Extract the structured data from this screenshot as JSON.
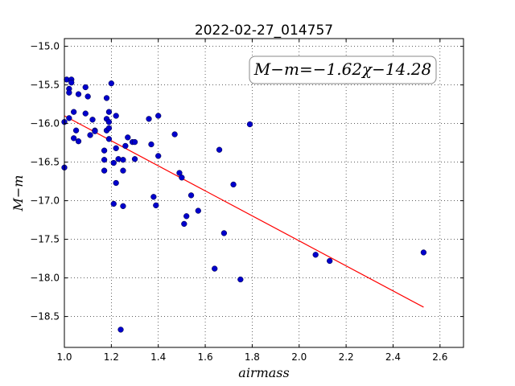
{
  "chart_data": {
    "type": "scatter",
    "title": "2022-02-27_014757",
    "xlabel": "airmass",
    "ylabel": "M−m",
    "xlim": [
      1.0,
      2.7
    ],
    "ylim": [
      -18.9,
      -14.9
    ],
    "y_inverted": true,
    "xticks": [
      "1.0",
      "1.2",
      "1.4",
      "1.6",
      "1.8",
      "2.0",
      "2.2",
      "2.4",
      "2.6"
    ],
    "yticks": [
      "−15.0",
      "−15.5",
      "−16.0",
      "−16.5",
      "−17.0",
      "−17.5",
      "−18.0",
      "−18.5"
    ],
    "grid": true,
    "annotation": "M−m=−1.62χ−14.28",
    "fit": {
      "slope": -1.62,
      "intercept": -14.28,
      "x_range": [
        1.0,
        2.53
      ],
      "color": "#ff0000"
    },
    "point_color": "#0000cc",
    "points": [
      [
        1.0,
        -15.98
      ],
      [
        1.0,
        -16.57
      ],
      [
        1.01,
        -15.43
      ],
      [
        1.02,
        -15.55
      ],
      [
        1.02,
        -15.6
      ],
      [
        1.02,
        -15.93
      ],
      [
        1.03,
        -15.43
      ],
      [
        1.03,
        -15.47
      ],
      [
        1.04,
        -15.85
      ],
      [
        1.04,
        -16.19
      ],
      [
        1.05,
        -16.09
      ],
      [
        1.06,
        -15.62
      ],
      [
        1.06,
        -16.23
      ],
      [
        1.09,
        -15.53
      ],
      [
        1.09,
        -15.87
      ],
      [
        1.1,
        -15.65
      ],
      [
        1.11,
        -16.15
      ],
      [
        1.12,
        -15.95
      ],
      [
        1.13,
        -16.09
      ],
      [
        1.13,
        -16.1
      ],
      [
        1.17,
        -16.35
      ],
      [
        1.17,
        -16.47
      ],
      [
        1.17,
        -16.61
      ],
      [
        1.18,
        -15.67
      ],
      [
        1.18,
        -15.94
      ],
      [
        1.18,
        -16.09
      ],
      [
        1.19,
        -15.85
      ],
      [
        1.19,
        -15.98
      ],
      [
        1.19,
        -16.06
      ],
      [
        1.19,
        -16.2
      ],
      [
        1.2,
        -15.48
      ],
      [
        1.21,
        -16.51
      ],
      [
        1.21,
        -17.04
      ],
      [
        1.22,
        -15.9
      ],
      [
        1.22,
        -16.32
      ],
      [
        1.22,
        -16.77
      ],
      [
        1.23,
        -16.46
      ],
      [
        1.24,
        -18.67
      ],
      [
        1.25,
        -16.61
      ],
      [
        1.25,
        -16.47
      ],
      [
        1.25,
        -17.07
      ],
      [
        1.26,
        -16.29
      ],
      [
        1.27,
        -16.18
      ],
      [
        1.29,
        -16.24
      ],
      [
        1.3,
        -16.46
      ],
      [
        1.3,
        -16.24
      ],
      [
        1.36,
        -15.94
      ],
      [
        1.37,
        -16.27
      ],
      [
        1.38,
        -16.95
      ],
      [
        1.39,
        -17.06
      ],
      [
        1.4,
        -15.9
      ],
      [
        1.4,
        -16.42
      ],
      [
        1.47,
        -16.14
      ],
      [
        1.49,
        -16.64
      ],
      [
        1.5,
        -16.7
      ],
      [
        1.51,
        -17.3
      ],
      [
        1.52,
        -17.2
      ],
      [
        1.54,
        -16.93
      ],
      [
        1.57,
        -17.13
      ],
      [
        1.64,
        -17.88
      ],
      [
        1.66,
        -16.34
      ],
      [
        1.68,
        -17.42
      ],
      [
        1.72,
        -16.79
      ],
      [
        1.75,
        -18.02
      ],
      [
        1.79,
        -16.01
      ],
      [
        2.07,
        -17.7
      ],
      [
        2.13,
        -17.78
      ],
      [
        2.53,
        -17.67
      ]
    ]
  }
}
